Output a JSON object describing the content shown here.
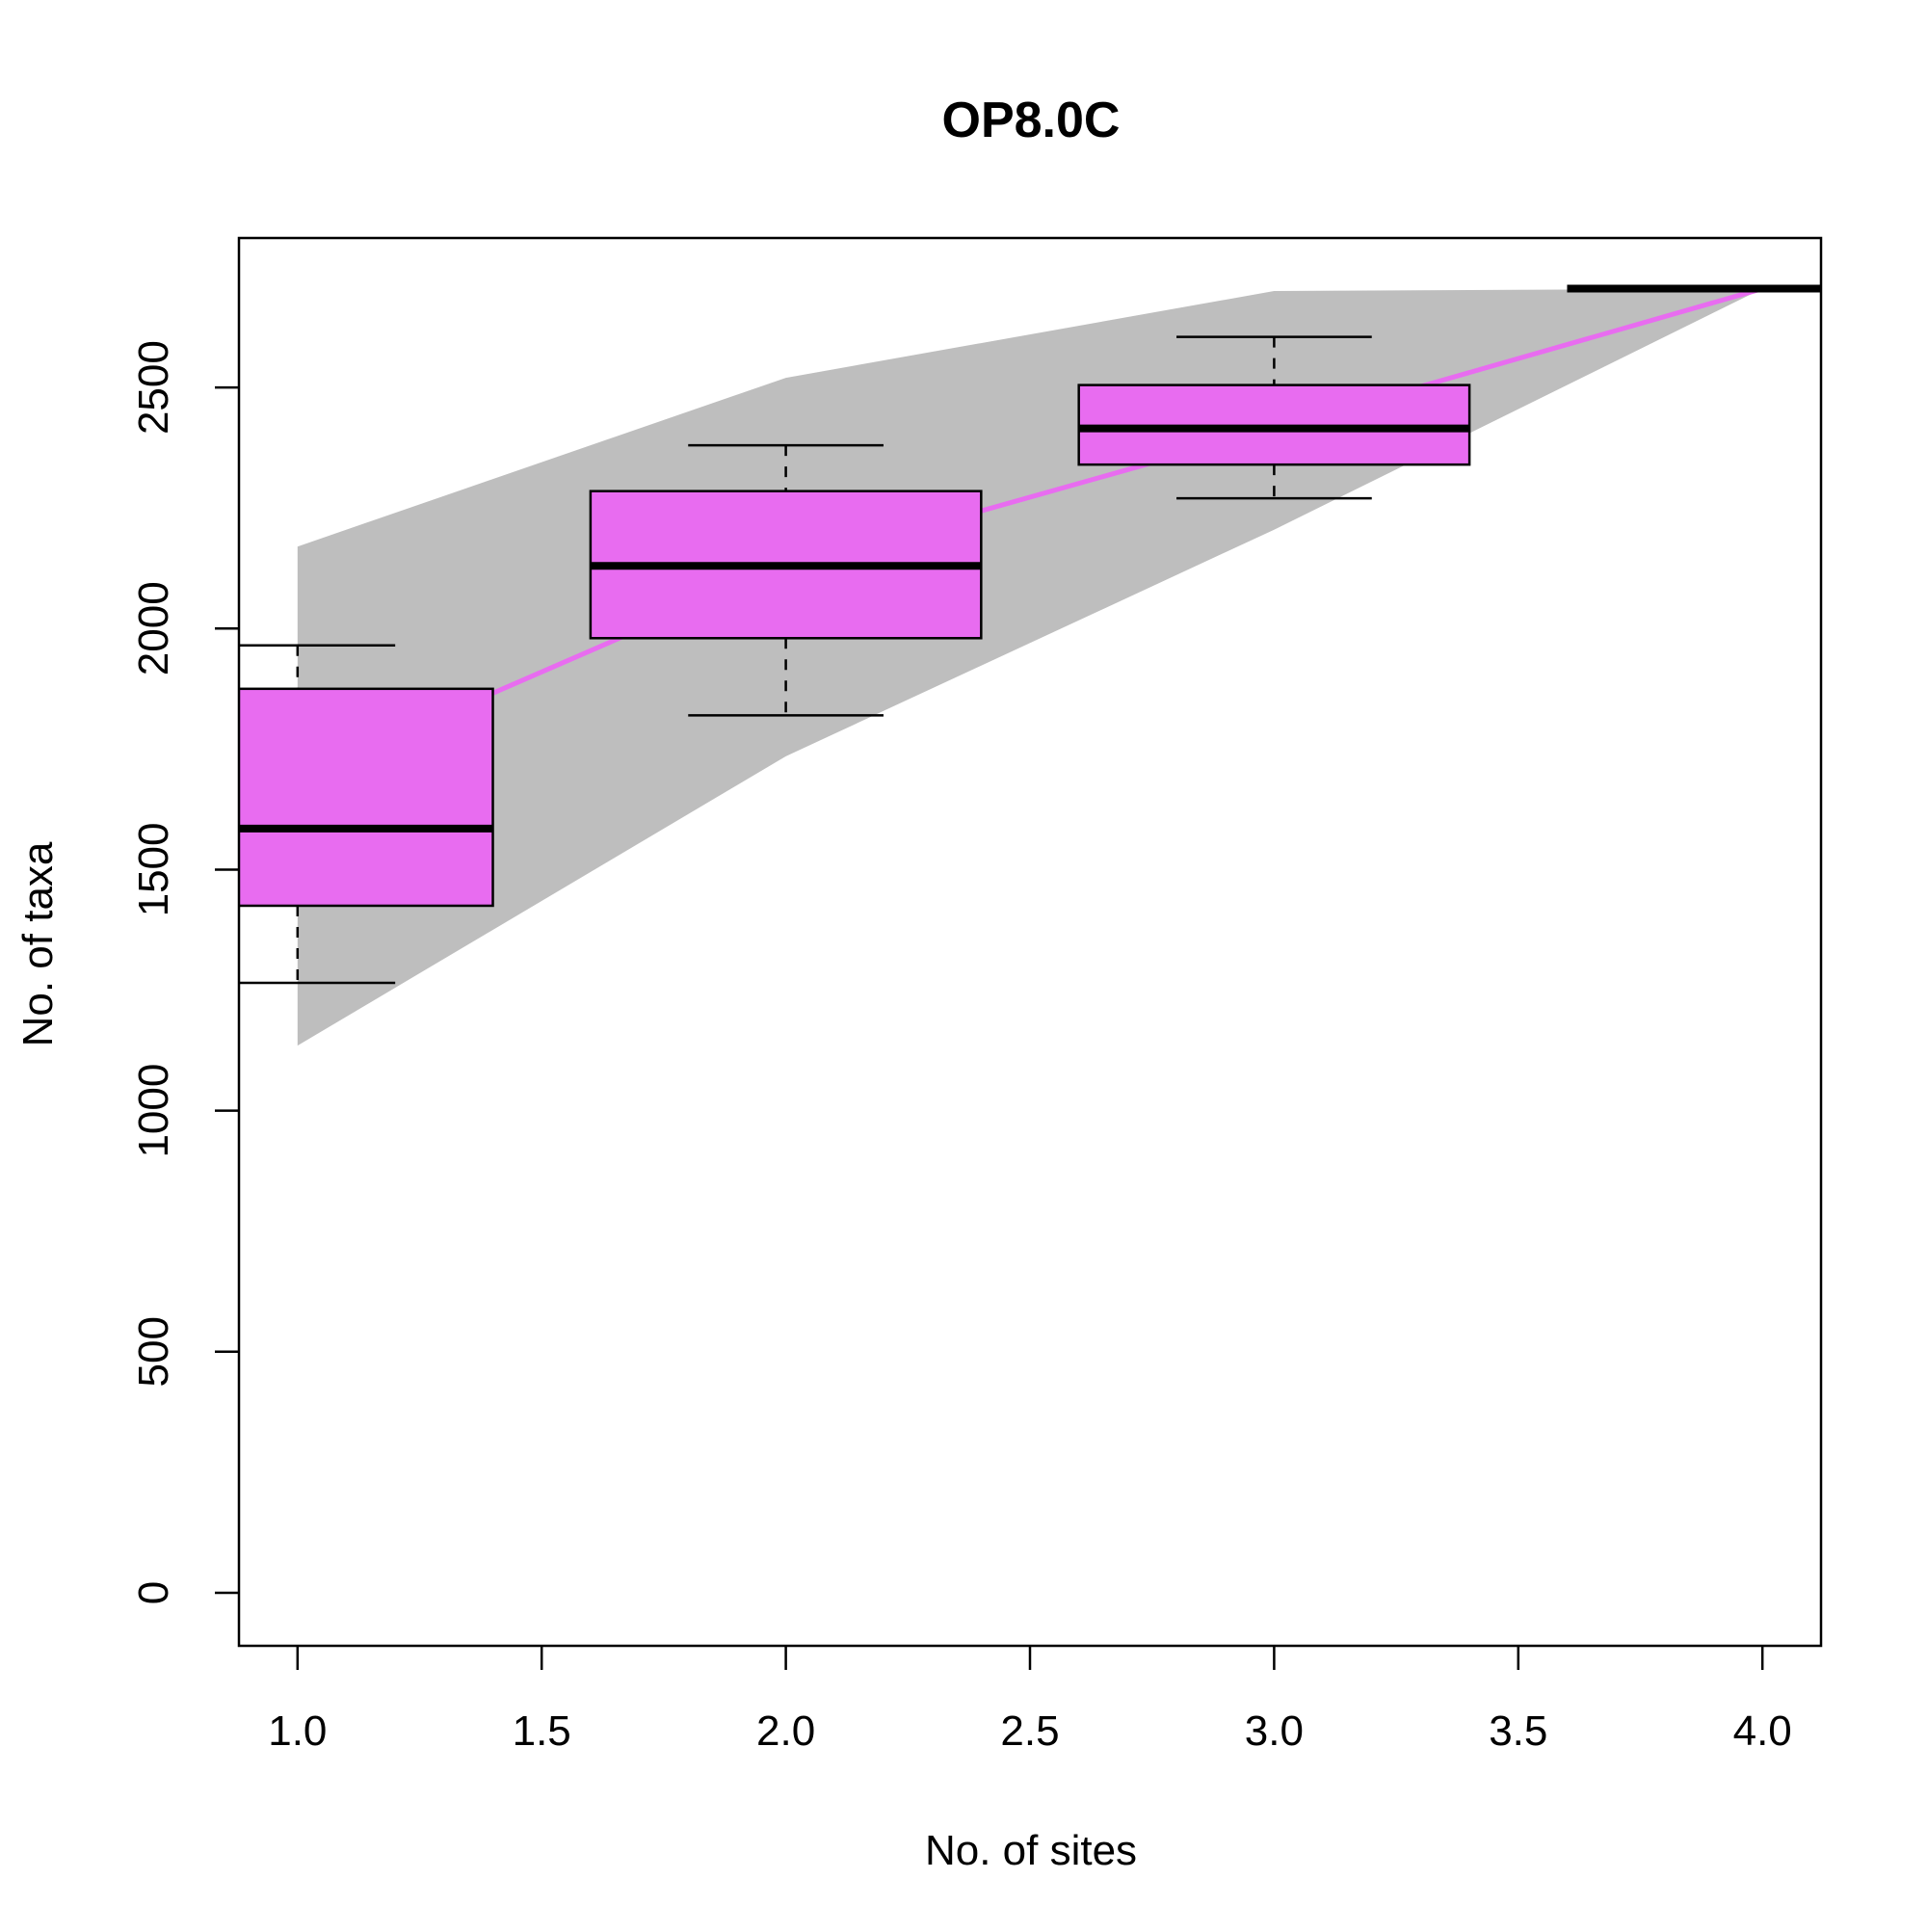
{
  "chart_data": {
    "type": "box",
    "title": "OP8.0C",
    "xlabel": "No. of sites",
    "ylabel": "No. of taxa",
    "xlim": [
      0.88,
      4.12
    ],
    "ylim": [
      -110,
      2810
    ],
    "x_ticks": [
      1.0,
      1.5,
      2.0,
      2.5,
      3.0,
      3.5,
      4.0
    ],
    "x_tick_labels": [
      "1.0",
      "1.5",
      "2.0",
      "2.5",
      "3.0",
      "3.5",
      "4.0"
    ],
    "y_ticks": [
      0,
      500,
      1000,
      1500,
      2000,
      2500
    ],
    "y_tick_labels": [
      "0",
      "500",
      "1000",
      "1500",
      "2000",
      "2500"
    ],
    "grid": false,
    "legend": "none",
    "colors": {
      "box_fill": "#e86cf0",
      "curve": "#e86cf0",
      "ci_band": "#bebebe",
      "axis": "#000000"
    },
    "ci_band": {
      "x": [
        1,
        2,
        3,
        4
      ],
      "upper": [
        2170,
        2520,
        2700,
        2705
      ],
      "lower": [
        1135,
        1735,
        2205,
        2705
      ]
    },
    "curve": {
      "x": [
        1,
        2,
        3,
        4
      ],
      "y": [
        1690,
        2130,
        2415,
        2705
      ]
    },
    "boxes": [
      {
        "x": 1,
        "whisker_low": 1265,
        "q1": 1425,
        "median": 1585,
        "q3": 1875,
        "whisker_high": 1965
      },
      {
        "x": 2,
        "whisker_low": 1820,
        "q1": 1980,
        "median": 2130,
        "q3": 2285,
        "whisker_high": 2380
      },
      {
        "x": 3,
        "whisker_low": 2270,
        "q1": 2340,
        "median": 2415,
        "q3": 2505,
        "whisker_high": 2605
      },
      {
        "x": 4,
        "whisker_low": 2705,
        "q1": 2705,
        "median": 2705,
        "q3": 2705,
        "whisker_high": 2705
      }
    ]
  }
}
